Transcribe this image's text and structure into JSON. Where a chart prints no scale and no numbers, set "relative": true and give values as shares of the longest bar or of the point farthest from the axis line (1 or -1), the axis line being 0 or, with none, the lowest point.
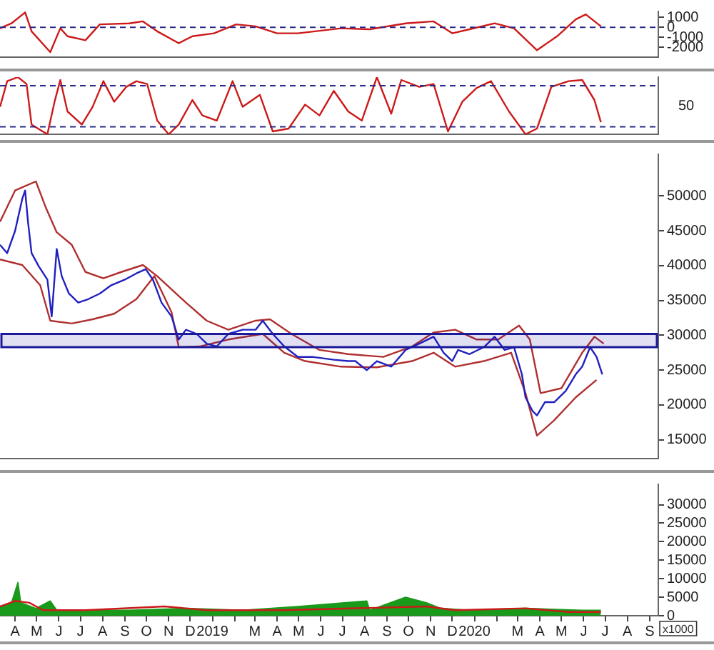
{
  "chart_data": [
    {
      "type": "line",
      "xlim": [
        "2018-03-11",
        "2020-09-13"
      ],
      "ylim": [
        -3000,
        1600
      ],
      "yticks": [
        -2000,
        -1000,
        0,
        1000
      ],
      "tick_labels": "y",
      "grid": false,
      "legend": false,
      "marker": "none",
      "ref_lines": [
        {
          "axis": "y",
          "value": 0,
          "color": "#2a2a8a",
          "line_style": "dashed"
        }
      ],
      "series": [
        {
          "color": "#cc1a1a",
          "x": [
            "2018-03-11",
            "2018-03-27",
            "2018-04-15",
            "2018-04-24",
            "2018-05-20",
            "2018-06-03",
            "2018-06-13",
            "2018-07-08",
            "2018-07-28",
            "2018-09-07",
            "2018-09-26",
            "2018-10-16",
            "2018-11-15",
            "2018-12-04",
            "2019-01-03",
            "2019-02-03",
            "2019-03-02",
            "2019-04-01",
            "2019-04-30",
            "2019-06-29",
            "2019-08-08",
            "2019-09-27",
            "2019-11-05",
            "2019-12-01",
            "2019-12-25",
            "2020-01-29",
            "2020-02-25",
            "2020-03-28",
            "2020-04-25",
            "2020-05-21",
            "2020-06-04",
            "2020-06-25"
          ],
          "values": [
            -100,
            400,
            1500,
            -400,
            -2500,
            -100,
            -900,
            -1300,
            300,
            400,
            600,
            -400,
            -1600,
            -900,
            -600,
            300,
            100,
            -600,
            -600,
            -100,
            -200,
            400,
            600,
            -600,
            -200,
            400,
            -100,
            -2300,
            -900,
            800,
            1300,
            100
          ]
        }
      ]
    },
    {
      "type": "line",
      "relative": true,
      "xlim": [
        "2018-03-11",
        "2020-09-13"
      ],
      "tick_labels": false,
      "grid": false,
      "legend": false,
      "marker": "none",
      "annotations": [
        "50"
      ],
      "ref_lines": [
        {
          "axis": "y",
          "value": 0.13,
          "color": "#2a2a8a",
          "line_style": "dashed"
        },
        {
          "axis": "y",
          "value": 0.85,
          "color": "#2a2a8a",
          "line_style": "dashed"
        }
      ],
      "series": [
        {
          "color": "#cc1a1a",
          "x": [
            "2018-03-11",
            "2018-03-21",
            "2018-04-05",
            "2018-04-17",
            "2018-04-24",
            "2018-05-16",
            "2018-05-26",
            "2018-06-03",
            "2018-06-13",
            "2018-07-03",
            "2018-07-18",
            "2018-08-02",
            "2018-08-17",
            "2018-09-03",
            "2018-09-17",
            "2018-10-02",
            "2018-10-16",
            "2018-11-01",
            "2018-11-15",
            "2018-12-04",
            "2018-12-18",
            "2019-01-07",
            "2019-01-29",
            "2019-02-12",
            "2019-03-08",
            "2019-03-26",
            "2019-04-17",
            "2019-05-10",
            "2019-05-30",
            "2019-06-19",
            "2019-07-09",
            "2019-07-28",
            "2019-08-18",
            "2019-09-07",
            "2019-09-21",
            "2019-10-16",
            "2019-11-05",
            "2019-11-25",
            "2019-12-15",
            "2020-01-04",
            "2020-01-24",
            "2020-02-18",
            "2020-03-12",
            "2020-03-28",
            "2020-04-17",
            "2020-05-11",
            "2020-05-30",
            "2020-06-16",
            "2020-06-25"
          ],
          "values": [
            0.48,
            0.93,
            1,
            0.88,
            0.17,
            0,
            0.57,
            0.95,
            0.4,
            0.17,
            0.48,
            0.93,
            0.57,
            0.83,
            0.93,
            0.88,
            0.24,
            0,
            0.17,
            0.6,
            0.33,
            0.24,
            0.93,
            0.48,
            0.69,
            0.05,
            0.1,
            0.52,
            0.33,
            0.76,
            0.4,
            0.24,
            1,
            0.36,
            0.95,
            0.83,
            0.88,
            0.05,
            0.57,
            0.81,
            0.93,
            0.4,
            0,
            0.1,
            0.83,
            0.93,
            0.95,
            0.6,
            0.21
          ]
        }
      ]
    },
    {
      "type": "line",
      "xlim": [
        "2018-03-11",
        "2020-09-13"
      ],
      "ylim": [
        12300,
        56000
      ],
      "yticks": [
        15000,
        20000,
        25000,
        30000,
        35000,
        40000,
        45000,
        50000
      ],
      "tick_labels": "y",
      "grid": false,
      "legend": false,
      "marker": "none",
      "bands": [
        {
          "axis": "y",
          "from": 28300,
          "to": 30200,
          "color": "#1a1a9a"
        }
      ],
      "series": [
        {
          "color": "#2020c0",
          "x": [
            "2018-03-11",
            "2018-03-21",
            "2018-04-01",
            "2018-04-11",
            "2018-04-15",
            "2018-04-19",
            "2018-04-24",
            "2018-05-04",
            "2018-05-16",
            "2018-05-22",
            "2018-05-29",
            "2018-06-05",
            "2018-06-15",
            "2018-06-28",
            "2018-07-12",
            "2018-07-28",
            "2018-08-13",
            "2018-09-01",
            "2018-09-17",
            "2018-09-30",
            "2018-10-10",
            "2018-10-22",
            "2018-11-05",
            "2018-11-15",
            "2018-11-25",
            "2018-12-10",
            "2018-12-24",
            "2019-01-07",
            "2019-01-23",
            "2019-02-12",
            "2019-03-02",
            "2019-03-12",
            "2019-03-26",
            "2019-04-11",
            "2019-04-30",
            "2019-05-20",
            "2019-06-19",
            "2019-07-09",
            "2019-07-19",
            "2019-08-04",
            "2019-08-18",
            "2019-09-07",
            "2019-09-27",
            "2019-10-16",
            "2019-11-05",
            "2019-11-19",
            "2019-12-01",
            "2019-12-09",
            "2019-12-25",
            "2020-01-14",
            "2020-01-29",
            "2020-02-12",
            "2020-02-25",
            "2020-03-07",
            "2020-03-12",
            "2020-03-22",
            "2020-03-28",
            "2020-04-08",
            "2020-04-21",
            "2020-05-07",
            "2020-05-21",
            "2020-05-30",
            "2020-06-10",
            "2020-06-19",
            "2020-06-27"
          ],
          "values": [
            43000,
            41800,
            45000,
            49600,
            50800,
            46300,
            41800,
            39900,
            38000,
            32700,
            42400,
            38500,
            36000,
            34700,
            35200,
            36000,
            37200,
            38000,
            38900,
            39500,
            38000,
            34700,
            32700,
            29400,
            30800,
            30200,
            28800,
            28400,
            30200,
            30800,
            30800,
            32100,
            30200,
            28400,
            26900,
            26900,
            26500,
            26300,
            26300,
            25000,
            26300,
            25500,
            27900,
            28800,
            29800,
            27500,
            26300,
            27900,
            27300,
            28300,
            29800,
            27900,
            28300,
            24400,
            21100,
            19100,
            18500,
            20400,
            20400,
            22000,
            24400,
            25500,
            28300,
            26900,
            24400
          ]
        },
        {
          "color": "#b03030",
          "x": [
            "2018-03-11",
            "2018-04-01",
            "2018-04-30",
            "2018-05-14",
            "2018-05-29",
            "2018-06-19",
            "2018-07-08",
            "2018-08-02",
            "2018-08-27",
            "2018-09-26",
            "2018-10-16",
            "2018-11-25",
            "2018-12-24",
            "2019-01-23",
            "2019-03-02",
            "2019-03-22",
            "2019-04-21",
            "2019-05-30",
            "2019-07-09",
            "2019-08-27",
            "2019-10-06",
            "2019-11-05",
            "2019-12-05",
            "2020-01-04",
            "2020-02-03",
            "2020-03-03",
            "2020-03-18",
            "2020-04-02",
            "2020-05-01",
            "2020-05-30",
            "2020-06-16",
            "2020-06-29"
          ],
          "values": [
            46300,
            50800,
            52100,
            48300,
            44800,
            43000,
            39100,
            38200,
            39100,
            40100,
            38500,
            34700,
            32100,
            30800,
            32100,
            32300,
            30200,
            27900,
            27300,
            26900,
            28400,
            30400,
            30800,
            29400,
            29400,
            31400,
            29400,
            21700,
            22400,
            27500,
            29800,
            28800
          ]
        },
        {
          "color": "#b03030",
          "x": [
            "2018-03-11",
            "2018-04-11",
            "2018-05-06",
            "2018-05-20",
            "2018-06-19",
            "2018-07-18",
            "2018-08-17",
            "2018-09-17",
            "2018-10-12",
            "2018-11-05",
            "2018-11-15",
            "2018-12-14",
            "2019-01-23",
            "2019-03-12",
            "2019-04-11",
            "2019-05-10",
            "2019-06-29",
            "2019-08-18",
            "2019-10-06",
            "2019-11-05",
            "2019-12-05",
            "2020-01-14",
            "2020-02-21",
            "2020-03-12",
            "2020-03-28",
            "2020-04-21",
            "2020-05-21",
            "2020-06-19"
          ],
          "values": [
            40900,
            40100,
            37200,
            32100,
            31700,
            32300,
            33100,
            35200,
            38500,
            33300,
            28300,
            28400,
            29400,
            30200,
            27500,
            26300,
            25500,
            25400,
            26300,
            27500,
            25500,
            26300,
            27500,
            21700,
            15600,
            17800,
            21100,
            23600
          ]
        }
      ]
    },
    {
      "type": "line",
      "xlim": [
        "2018-03-11",
        "2020-09-13"
      ],
      "ylim": [
        0,
        35500
      ],
      "yticks": [
        0,
        5000,
        10000,
        15000,
        20000,
        25000,
        30000
      ],
      "xticks": [
        {
          "value": "2018-04-01",
          "label": "A"
        },
        {
          "value": "2018-05-01",
          "label": "M"
        },
        {
          "value": "2018-06-01",
          "label": "J"
        },
        {
          "value": "2018-07-01",
          "label": "J"
        },
        {
          "value": "2018-08-01",
          "label": "A"
        },
        {
          "value": "2018-09-01",
          "label": "S"
        },
        {
          "value": "2018-10-01",
          "label": "O"
        },
        {
          "value": "2018-11-01",
          "label": "N"
        },
        {
          "value": "2018-12-01",
          "label": "D"
        },
        {
          "value": "2019-01-01",
          "label": "2019"
        },
        {
          "value": "2019-02-01",
          "label": null
        },
        {
          "value": "2019-03-01",
          "label": "M"
        },
        {
          "value": "2019-04-01",
          "label": "A"
        },
        {
          "value": "2019-05-01",
          "label": "M"
        },
        {
          "value": "2019-06-01",
          "label": "J"
        },
        {
          "value": "2019-07-01",
          "label": "J"
        },
        {
          "value": "2019-08-01",
          "label": "A"
        },
        {
          "value": "2019-09-01",
          "label": "S"
        },
        {
          "value": "2019-10-01",
          "label": "O"
        },
        {
          "value": "2019-11-01",
          "label": "N"
        },
        {
          "value": "2019-12-01",
          "label": "D"
        },
        {
          "value": "2020-01-01",
          "label": "2020"
        },
        {
          "value": "2020-02-01",
          "label": null
        },
        {
          "value": "2020-03-01",
          "label": "M"
        },
        {
          "value": "2020-04-01",
          "label": "A"
        },
        {
          "value": "2020-05-01",
          "label": "M"
        },
        {
          "value": "2020-06-01",
          "label": "J"
        },
        {
          "value": "2020-07-01",
          "label": "J"
        },
        {
          "value": "2020-08-01",
          "label": "A"
        },
        {
          "value": "2020-09-01",
          "label": "S"
        }
      ],
      "grid": false,
      "legend": false,
      "marker": "none",
      "annotations": [
        "x1000"
      ],
      "series": [
        {
          "type": "area",
          "color": "#1a9a1a",
          "x": [
            "2018-03-11",
            "2018-03-27",
            "2018-04-05",
            "2018-04-09",
            "2018-04-30",
            "2018-05-20",
            "2018-05-29",
            "2018-07-08",
            "2018-09-07",
            "2018-11-25",
            "2019-02-12",
            "2019-04-30",
            "2019-08-04",
            "2019-08-08",
            "2019-09-27",
            "2019-10-26",
            "2019-11-15",
            "2019-12-25",
            "2020-03-12",
            "2020-05-30",
            "2020-06-25"
          ],
          "values": [
            2500,
            3500,
            9000,
            3500,
            2000,
            4000,
            1500,
            1500,
            1500,
            2000,
            1500,
            2500,
            4000,
            1500,
            5000,
            3500,
            2000,
            1500,
            2000,
            1500,
            1500
          ]
        },
        {
          "color": "#cc1a1a",
          "x": [
            "2018-03-11",
            "2018-04-01",
            "2018-04-21",
            "2018-05-10",
            "2018-07-08",
            "2018-10-26",
            "2018-12-24",
            "2019-04-11",
            "2019-10-26",
            "2019-12-05",
            "2020-03-12",
            "2020-05-11",
            "2020-06-25"
          ],
          "values": [
            2500,
            4000,
            3500,
            1500,
            1500,
            2500,
            1500,
            1500,
            2500,
            1500,
            2000,
            1000,
            1000
          ]
        }
      ]
    }
  ]
}
